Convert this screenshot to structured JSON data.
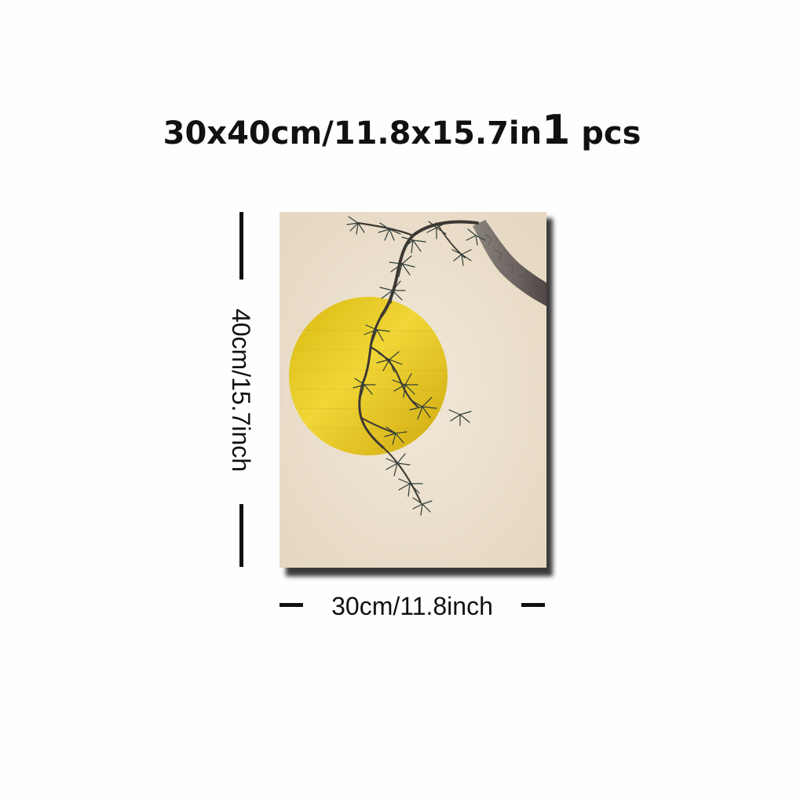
{
  "title": {
    "size_text": "30x40cm/11.8x15.7in",
    "quantity": "1",
    "unit": "pcs"
  },
  "dimensions": {
    "height_label": "40cm/15.7inch",
    "width_label": "30cm/11.8inch"
  },
  "artwork": {
    "subject": "pine-branch-and-golden-moon",
    "colors": {
      "background": "#eee3d1",
      "moon": "#e6c21e",
      "needles": "#2f3d38",
      "trunk": "#7b7370"
    }
  }
}
